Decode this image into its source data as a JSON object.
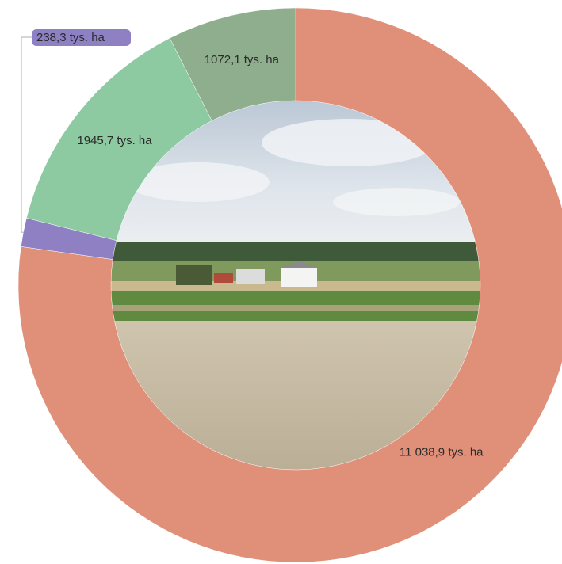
{
  "chart_data": {
    "type": "donut",
    "values": [
      11038.9,
      238.3,
      1945.7,
      1072.1
    ],
    "value_labels": [
      "11 038,9 tys. ha",
      "238,3 tys. ha",
      "1945,7 tys. ha",
      "1072,1 tys. ha"
    ],
    "colors": [
      "#e08f78",
      "#8e80c2",
      "#8dc9a1",
      "#8fae8e"
    ]
  }
}
